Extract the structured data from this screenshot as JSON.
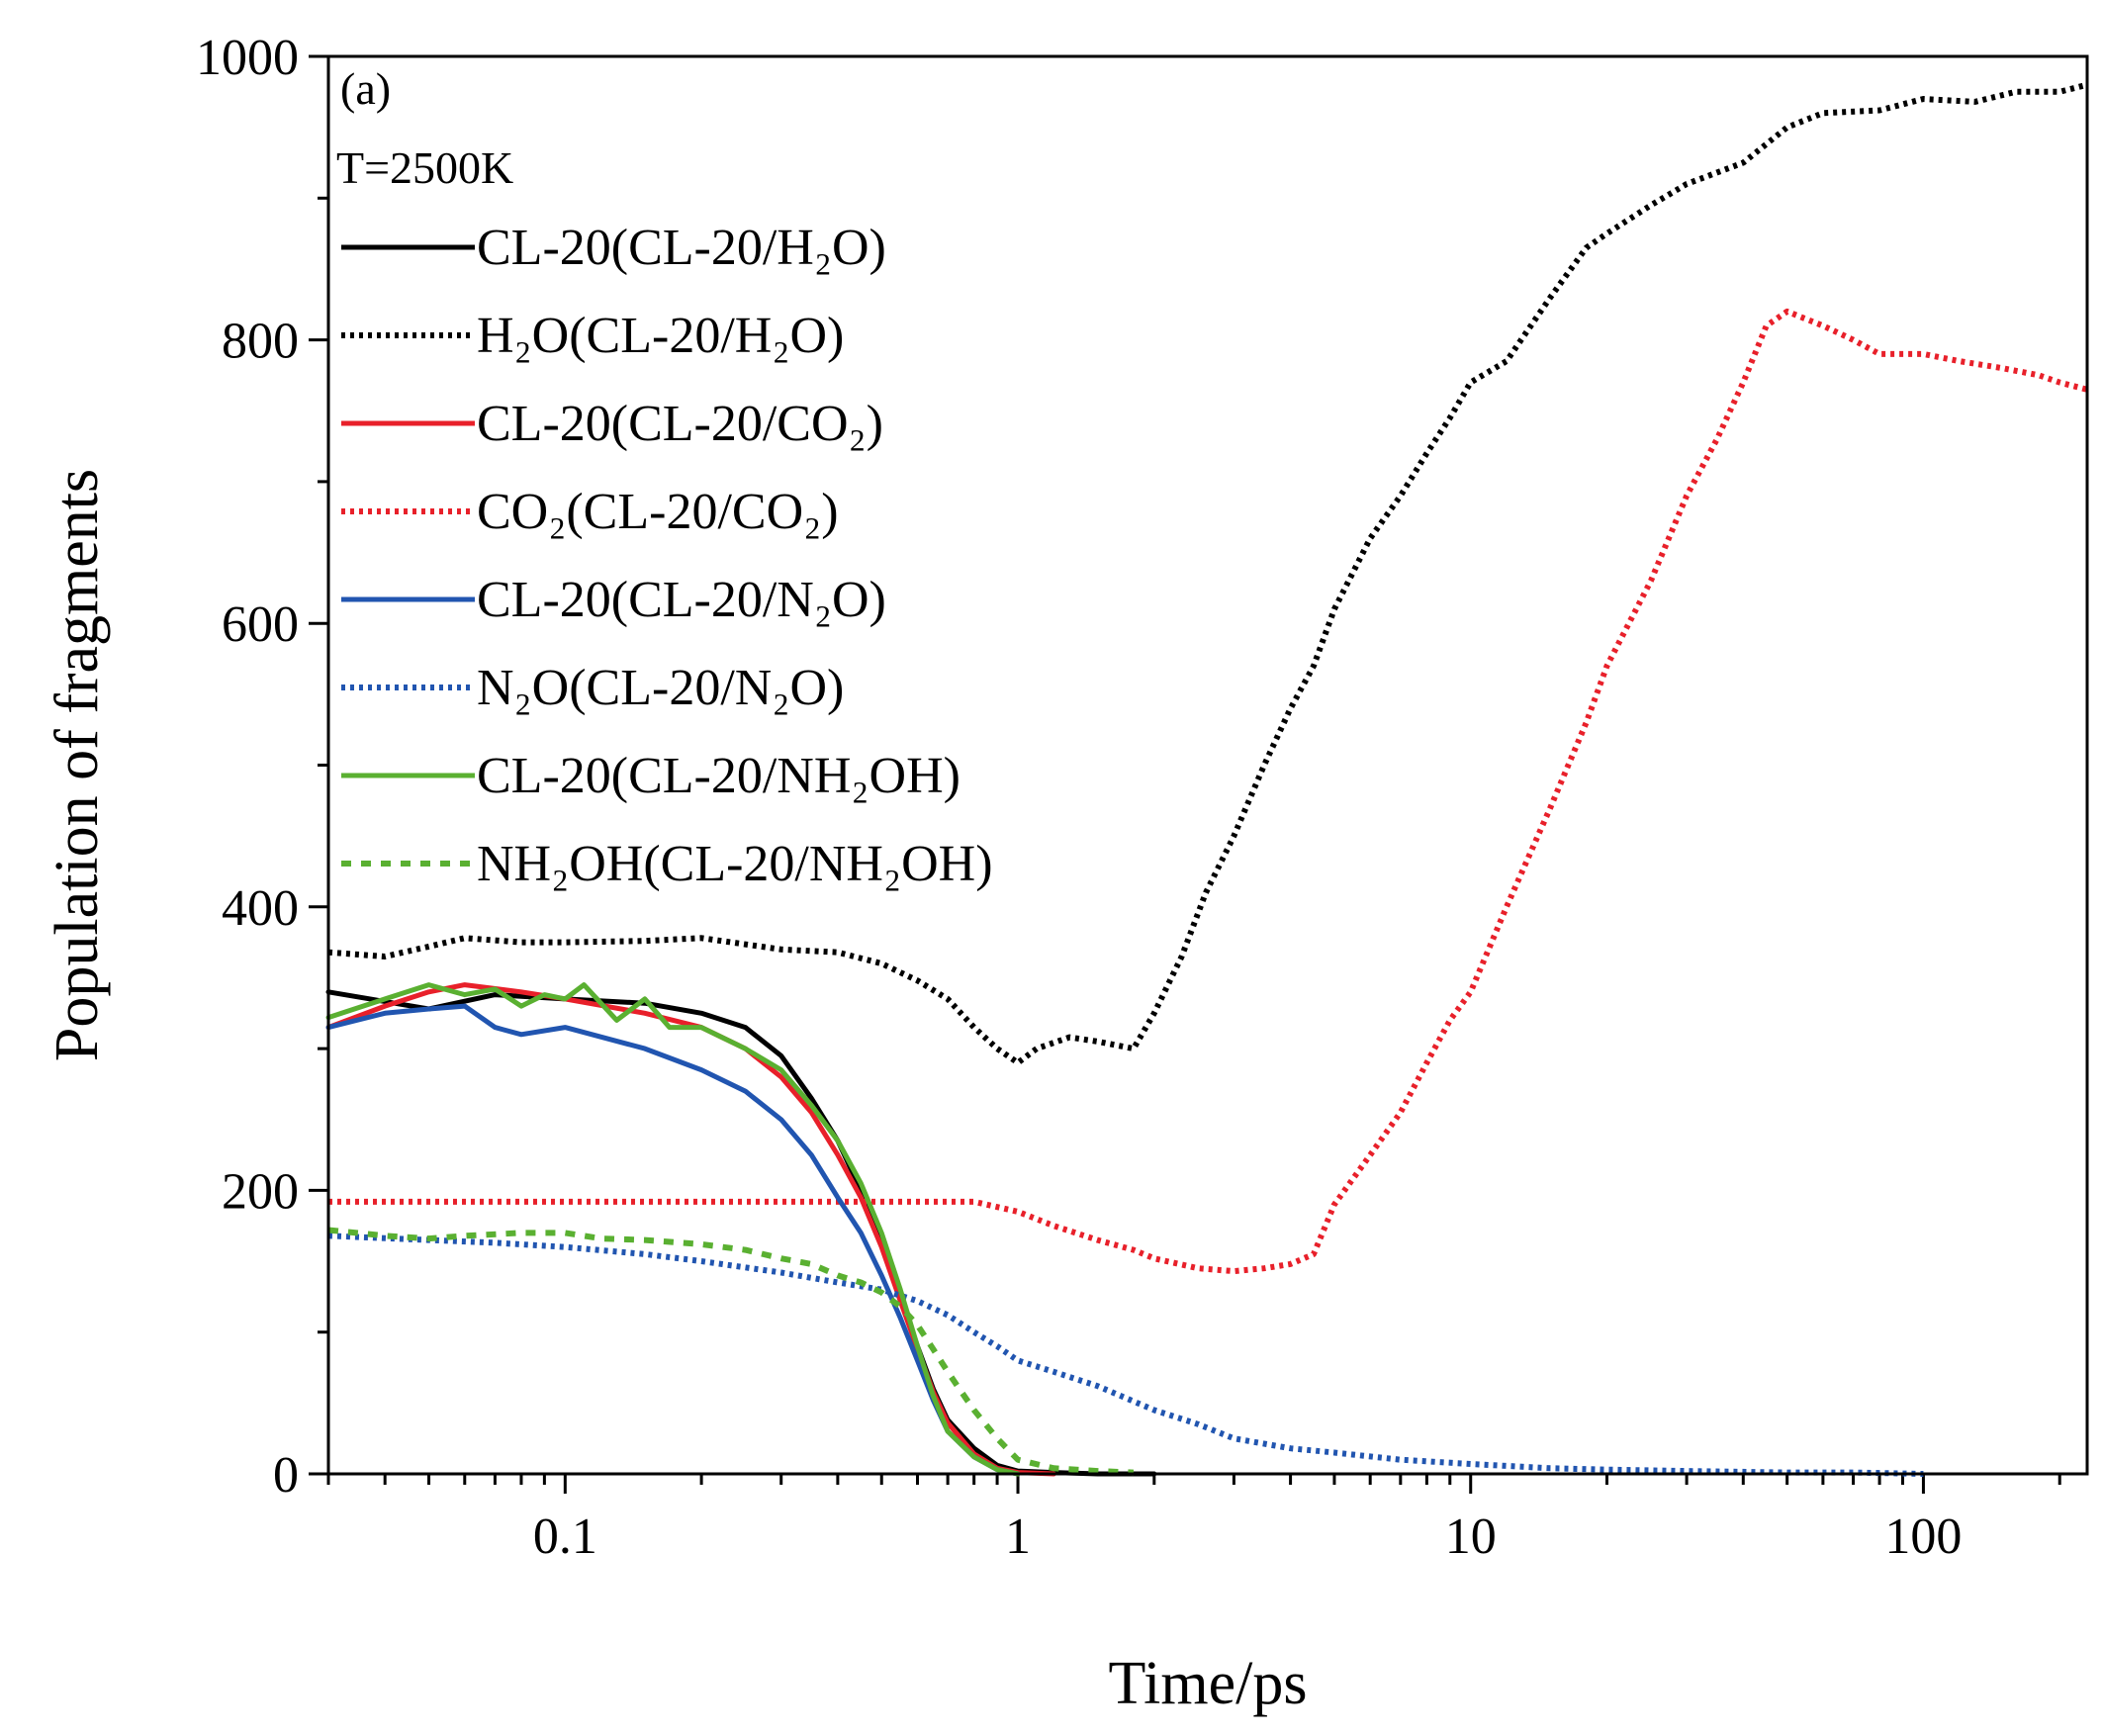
{
  "chart_data": {
    "type": "line",
    "panel_label": "(a)",
    "condition": "T=2500K",
    "xlabel": "Time/ps",
    "ylabel": "Population of fragments",
    "x_scale": "log",
    "xlim": [
      0.03,
      230
    ],
    "ylim": [
      0,
      1000
    ],
    "x_tick_labels": [
      "0.1",
      "1",
      "10",
      "100"
    ],
    "y_tick_labels": [
      "0",
      "200",
      "400",
      "600",
      "800",
      "1000"
    ],
    "legend_placement": "top-left",
    "series": [
      {
        "name": "CL-20(CL-20/H₂O)",
        "color": "#000000",
        "style": "solid",
        "x": [
          0.03,
          0.05,
          0.07,
          0.1,
          0.15,
          0.2,
          0.25,
          0.3,
          0.35,
          0.4,
          0.45,
          0.5,
          0.55,
          0.6,
          0.65,
          0.7,
          0.8,
          0.9,
          1.0,
          1.2,
          1.5,
          2.0
        ],
        "y": [
          340,
          328,
          338,
          335,
          332,
          325,
          315,
          295,
          265,
          235,
          200,
          165,
          125,
          90,
          60,
          38,
          18,
          6,
          2,
          1,
          0,
          0
        ]
      },
      {
        "name": "H₂O(CL-20/H₂O)",
        "color": "#000000",
        "style": "dotted",
        "x": [
          0.03,
          0.04,
          0.05,
          0.06,
          0.08,
          0.1,
          0.15,
          0.2,
          0.3,
          0.4,
          0.5,
          0.6,
          0.7,
          0.8,
          0.9,
          1.0,
          1.1,
          1.3,
          1.5,
          1.8,
          2.0,
          2.3,
          2.6,
          3.0,
          3.5,
          4.0,
          4.5,
          5.0,
          6.0,
          7.0,
          8.0,
          9.0,
          10,
          12,
          15,
          18,
          20,
          25,
          30,
          40,
          50,
          60,
          80,
          100,
          130,
          160,
          200,
          230
        ],
        "y": [
          368,
          365,
          372,
          378,
          375,
          375,
          376,
          378,
          370,
          368,
          360,
          348,
          335,
          315,
          300,
          290,
          300,
          308,
          305,
          300,
          325,
          365,
          410,
          450,
          500,
          540,
          570,
          610,
          660,
          690,
          720,
          745,
          770,
          785,
          830,
          865,
          875,
          895,
          910,
          925,
          950,
          960,
          962,
          970,
          968,
          975,
          975,
          980
        ]
      },
      {
        "name": "CL-20(CL-20/CO₂)",
        "color": "#e8202a",
        "style": "solid",
        "x": [
          0.03,
          0.04,
          0.05,
          0.06,
          0.08,
          0.1,
          0.15,
          0.2,
          0.25,
          0.3,
          0.35,
          0.4,
          0.45,
          0.5,
          0.55,
          0.6,
          0.65,
          0.7,
          0.8,
          0.9,
          1.0,
          1.2
        ],
        "y": [
          315,
          330,
          340,
          345,
          340,
          335,
          325,
          315,
          300,
          280,
          255,
          225,
          195,
          160,
          122,
          88,
          58,
          36,
          14,
          4,
          1,
          0
        ]
      },
      {
        "name": "CO₂(CL-20/CO₂)",
        "color": "#e8202a",
        "style": "dotted",
        "x": [
          0.03,
          0.05,
          0.1,
          0.2,
          0.3,
          0.5,
          0.8,
          1.0,
          1.2,
          1.5,
          1.8,
          2.0,
          2.5,
          3.0,
          3.5,
          4.0,
          4.5,
          5.0,
          6.0,
          7.0,
          8.0,
          9.0,
          10,
          12,
          15,
          18,
          20,
          25,
          30,
          35,
          40,
          45,
          50,
          60,
          70,
          80,
          100,
          120,
          150,
          180,
          200,
          230
        ],
        "y": [
          192,
          192,
          192,
          192,
          192,
          192,
          192,
          185,
          175,
          165,
          158,
          152,
          145,
          143,
          145,
          148,
          155,
          190,
          225,
          255,
          290,
          320,
          340,
          400,
          470,
          530,
          570,
          630,
          690,
          730,
          770,
          810,
          820,
          810,
          800,
          790,
          790,
          785,
          780,
          775,
          770,
          765
        ]
      },
      {
        "name": "CL-20(CL-20/N₂O)",
        "color": "#2155b0",
        "style": "solid",
        "x": [
          0.03,
          0.04,
          0.05,
          0.06,
          0.07,
          0.08,
          0.1,
          0.15,
          0.2,
          0.25,
          0.3,
          0.35,
          0.4,
          0.45,
          0.5,
          0.55,
          0.6,
          0.65,
          0.7,
          0.8,
          0.9,
          1.0
        ],
        "y": [
          315,
          325,
          328,
          330,
          315,
          310,
          315,
          300,
          285,
          270,
          250,
          225,
          195,
          170,
          140,
          110,
          80,
          52,
          30,
          12,
          3,
          0
        ]
      },
      {
        "name": "N₂O(CL-20/N₂O)",
        "color": "#2155b0",
        "style": "dotted",
        "x": [
          0.03,
          0.05,
          0.07,
          0.1,
          0.15,
          0.2,
          0.3,
          0.4,
          0.5,
          0.6,
          0.7,
          0.8,
          0.9,
          1.0,
          1.2,
          1.5,
          2.0,
          2.5,
          3.0,
          4.0,
          5.0,
          7.0,
          10,
          15,
          20,
          30,
          50,
          70,
          100
        ],
        "y": [
          168,
          165,
          163,
          160,
          155,
          150,
          142,
          135,
          130,
          122,
          112,
          100,
          90,
          80,
          72,
          62,
          45,
          35,
          25,
          18,
          15,
          10,
          7,
          4,
          3,
          2,
          1,
          1,
          0
        ]
      },
      {
        "name": "CL-20(CL-20/NH₂OH)",
        "color": "#5ab031",
        "style": "solid",
        "x": [
          0.03,
          0.04,
          0.05,
          0.06,
          0.07,
          0.08,
          0.09,
          0.1,
          0.11,
          0.13,
          0.15,
          0.17,
          0.2,
          0.25,
          0.3,
          0.35,
          0.4,
          0.45,
          0.5,
          0.55,
          0.6,
          0.65,
          0.7,
          0.8,
          0.9,
          1.0
        ],
        "y": [
          322,
          335,
          345,
          338,
          342,
          330,
          338,
          335,
          345,
          320,
          335,
          315,
          315,
          300,
          285,
          260,
          235,
          205,
          170,
          130,
          90,
          55,
          30,
          12,
          3,
          0
        ]
      },
      {
        "name": "NH₂OH(CL-20/NH₂OH)",
        "color": "#5ab031",
        "style": "dashed",
        "x": [
          0.03,
          0.04,
          0.05,
          0.06,
          0.08,
          0.1,
          0.12,
          0.15,
          0.2,
          0.25,
          0.3,
          0.35,
          0.4,
          0.45,
          0.5,
          0.55,
          0.6,
          0.65,
          0.7,
          0.75,
          0.8,
          0.9,
          1.0,
          1.2,
          1.5,
          1.8
        ],
        "y": [
          172,
          168,
          166,
          168,
          170,
          170,
          166,
          165,
          162,
          158,
          152,
          148,
          140,
          135,
          128,
          118,
          105,
          88,
          72,
          58,
          45,
          25,
          10,
          4,
          2,
          1
        ]
      }
    ]
  }
}
